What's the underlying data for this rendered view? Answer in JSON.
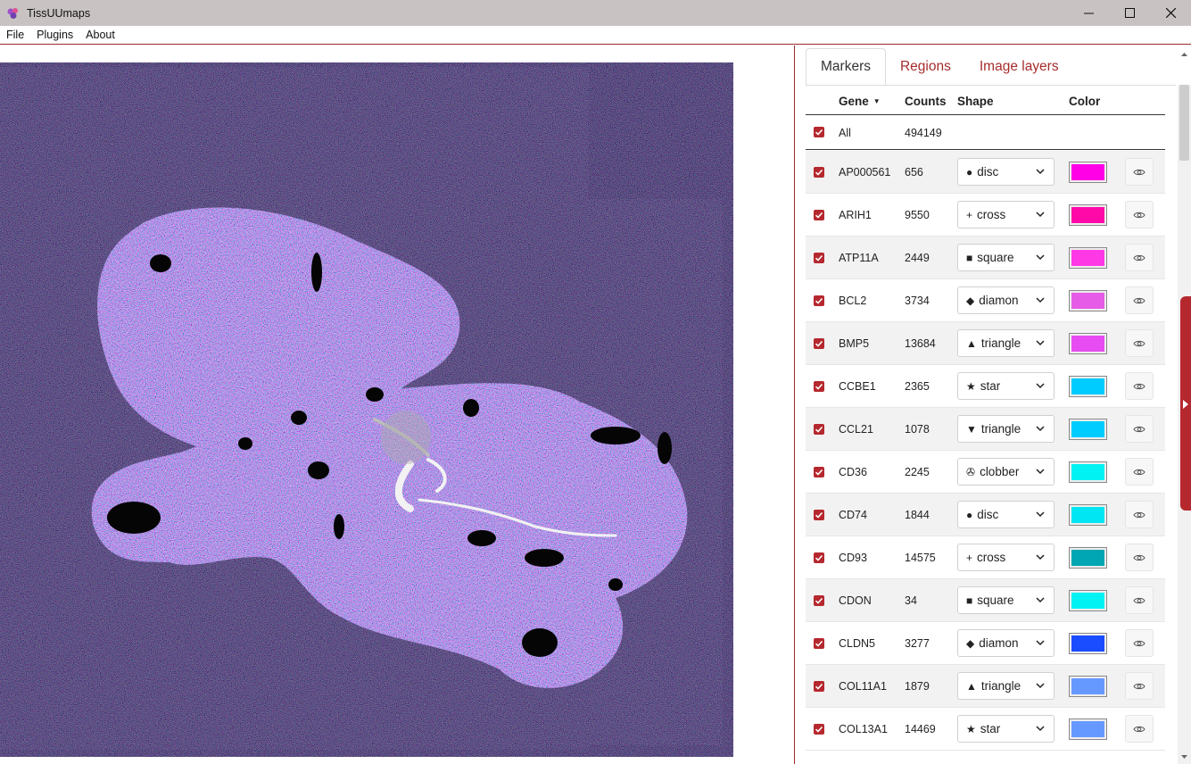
{
  "window": {
    "title": "TissUUmaps"
  },
  "menu": [
    "File",
    "Plugins",
    "About"
  ],
  "tabs": [
    {
      "label": "Markers",
      "active": true
    },
    {
      "label": "Regions",
      "active": false
    },
    {
      "label": "Image layers",
      "active": false
    }
  ],
  "table": {
    "headers": {
      "gene": "Gene",
      "counts": "Counts",
      "shape": "Shape",
      "color": "Color"
    },
    "all": {
      "label": "All",
      "count": "494149"
    },
    "rows": [
      {
        "gene": "AP000561",
        "count": "656",
        "shape_symbol": "●",
        "shape": "disc",
        "color": "#ff00e6"
      },
      {
        "gene": "ARIH1",
        "count": "9550",
        "shape_symbol": "+",
        "shape": "cross",
        "color": "#ff0aa8"
      },
      {
        "gene": "ATP11A",
        "count": "2449",
        "shape_symbol": "■",
        "shape": "square",
        "color": "#ff38e6"
      },
      {
        "gene": "BCL2",
        "count": "3734",
        "shape_symbol": "◆",
        "shape": "diamon",
        "color": "#e65ce6"
      },
      {
        "gene": "BMP5",
        "count": "13684",
        "shape_symbol": "▲",
        "shape": "triangle",
        "color": "#e64cf2"
      },
      {
        "gene": "CCBE1",
        "count": "2365",
        "shape_symbol": "★",
        "shape": "star",
        "color": "#00ccff"
      },
      {
        "gene": "CCL21",
        "count": "1078",
        "shape_symbol": "▼",
        "shape": "triangle",
        "color": "#00ccff"
      },
      {
        "gene": "CD36",
        "count": "2245",
        "shape_symbol": "✇",
        "shape": "clobber",
        "color": "#00f2f2"
      },
      {
        "gene": "CD74",
        "count": "1844",
        "shape_symbol": "●",
        "shape": "disc",
        "color": "#00e6f2"
      },
      {
        "gene": "CD93",
        "count": "14575",
        "shape_symbol": "+",
        "shape": "cross",
        "color": "#00a6b3"
      },
      {
        "gene": "CDON",
        "count": "34",
        "shape_symbol": "■",
        "shape": "square",
        "color": "#00f2f2"
      },
      {
        "gene": "CLDN5",
        "count": "3277",
        "shape_symbol": "◆",
        "shape": "diamon",
        "color": "#1a4dff"
      },
      {
        "gene": "COL11A1",
        "count": "1879",
        "shape_symbol": "▲",
        "shape": "triangle",
        "color": "#6699ff"
      },
      {
        "gene": "COL13A1",
        "count": "14469",
        "shape_symbol": "★",
        "shape": "star",
        "color": "#6699ff"
      }
    ]
  },
  "colors": {
    "accent": "#b5282e",
    "tab_inactive": "#a62c2c",
    "titlebar": "#c8c2c2"
  }
}
